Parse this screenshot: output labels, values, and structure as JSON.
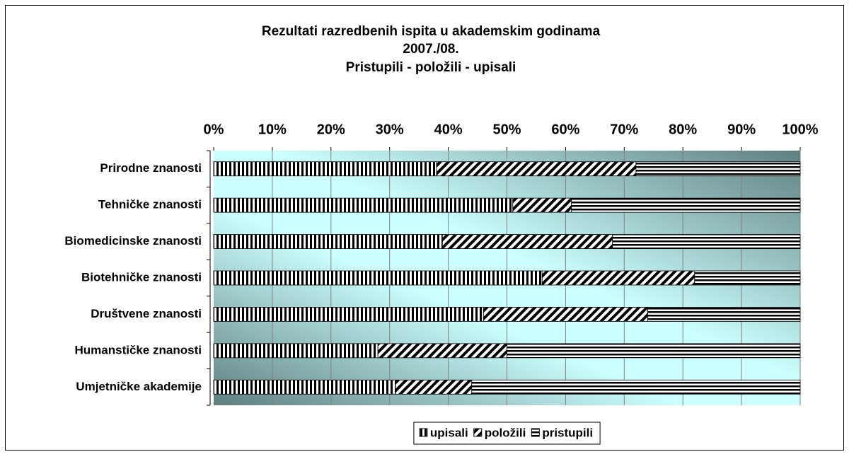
{
  "chart_data": {
    "type": "stacked_percent_barh",
    "title": [
      "Rezultati razredbenih ispita u akademskim godinama",
      "2007./08."
    ],
    "subtitle": "Pristupili - položili - upisali",
    "categories": [
      "Prirodne znanosti",
      "Tehničke znanosti",
      "Biomedicinske znanosti",
      "Biotehničke znanosti",
      "Društvene znanosti",
      "Humanstičke znanosti",
      "Umjetničke akademije"
    ],
    "series": [
      {
        "name": "upisali",
        "color": "#000000",
        "pattern": "vertical",
        "values": [
          38,
          51,
          39,
          56,
          46,
          28,
          31
        ]
      },
      {
        "name": "položili",
        "color": "#000000",
        "pattern": "diagonal",
        "values": [
          34,
          10,
          29,
          26,
          28,
          22,
          13
        ]
      },
      {
        "name": "pristupili",
        "color": "#000000",
        "pattern": "horizontal",
        "values": [
          28,
          39,
          32,
          18,
          26,
          50,
          56
        ]
      }
    ],
    "xlim": [
      0,
      100
    ],
    "xticks": [
      {
        "value": 0,
        "label": "0%"
      },
      {
        "value": 10,
        "label": "10%"
      },
      {
        "value": 20,
        "label": "20%"
      },
      {
        "value": 30,
        "label": "30%"
      },
      {
        "value": 40,
        "label": "40%"
      },
      {
        "value": 50,
        "label": "50%"
      },
      {
        "value": 60,
        "label": "60%"
      },
      {
        "value": 70,
        "label": "70%"
      },
      {
        "value": 80,
        "label": "80%"
      },
      {
        "value": 90,
        "label": "90%"
      },
      {
        "value": 100,
        "label": "100%"
      }
    ],
    "grid": true,
    "legend": "bottom"
  }
}
